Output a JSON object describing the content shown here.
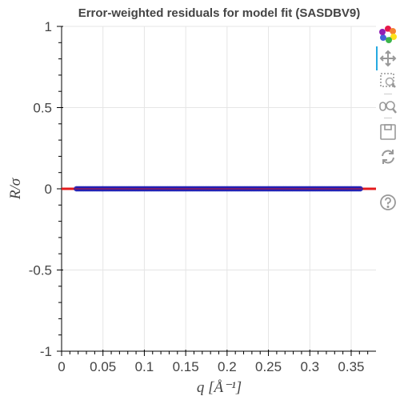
{
  "chart_data": {
    "type": "scatter",
    "title": "Error-weighted residuals for model fit (SASDBV9)",
    "xlabel": "q [Å⁻¹]",
    "ylabel": "R/σ",
    "xlim": [
      0,
      0.38
    ],
    "ylim": [
      -1,
      1
    ],
    "x_ticks": [
      0,
      0.05,
      0.1,
      0.15,
      0.2,
      0.25,
      0.3,
      0.35
    ],
    "x_tick_labels": [
      "0",
      "0.05",
      "0.1",
      "0.15",
      "0.2",
      "0.25",
      "0.3",
      "0.35"
    ],
    "y_ticks": [
      -1,
      -0.5,
      0,
      0.5,
      1
    ],
    "y_tick_labels": [
      "-1",
      "-0.5",
      "0",
      "0.5",
      "1"
    ],
    "grid": true,
    "series": [
      {
        "color": "#1f1fb4",
        "x_start": 0.018,
        "x_end": 0.361,
        "y": 0,
        "note": "dense residual points along zero"
      }
    ],
    "reference_line": {
      "y": 0,
      "color": "#e41a1c"
    }
  },
  "toolbar": {
    "items": [
      "bokeh-logo-icon",
      "pan-icon",
      "box-zoom-icon",
      "wheel-zoom-icon",
      "save-icon",
      "reset-icon",
      "help-icon"
    ]
  }
}
